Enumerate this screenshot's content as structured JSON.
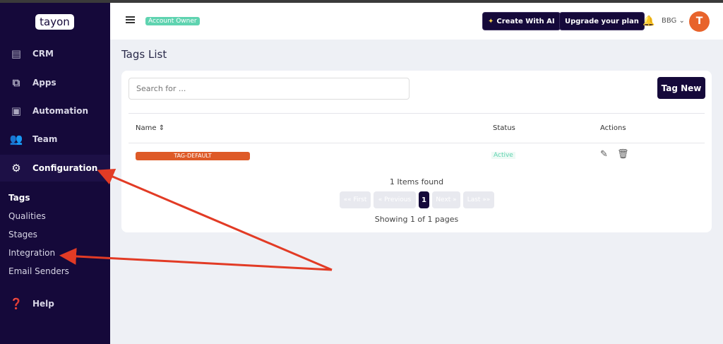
{
  "sidebar": {
    "logo": "tayon",
    "items": [
      {
        "label": "CRM",
        "icon": "id-card-icon"
      },
      {
        "label": "Apps",
        "icon": "flow-icon"
      },
      {
        "label": "Automation",
        "icon": "robot-icon"
      },
      {
        "label": "Team",
        "icon": "users-icon"
      },
      {
        "label": "Configuration",
        "icon": "gear-icon"
      }
    ],
    "subitems": [
      "Tags",
      "Qualities",
      "Stages",
      "Integration",
      "Email Senders"
    ],
    "help": "Help"
  },
  "header": {
    "role_badge": "Account Owner",
    "create_ai": "Create With AI",
    "upgrade": "Upgrade your plan",
    "user": "BBG"
  },
  "page": {
    "title": "Tags List",
    "search_placeholder": "Search for ...",
    "tag_new": "Tag New",
    "columns": {
      "name": "Name",
      "status": "Status",
      "actions": "Actions"
    },
    "rows": [
      {
        "name": "TAG-DEFAULT",
        "status": "Active"
      }
    ],
    "items_found": "1 Items found",
    "pagination": {
      "first": "«« First",
      "previous": "« Previous",
      "current": "1",
      "next": "Next »",
      "last": "Last »»"
    },
    "showing": "Showing 1 of 1 pages"
  },
  "colors": {
    "sidebar": "#15093a",
    "tag": "#de5a27",
    "active": "#5fd3b0",
    "annotation": "#e23b25"
  }
}
